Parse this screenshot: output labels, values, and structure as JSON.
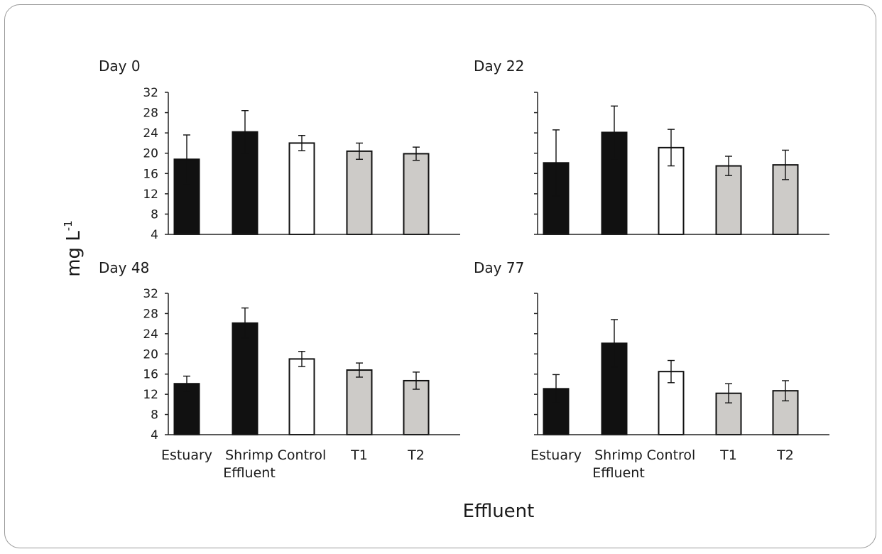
{
  "figure": {
    "ylabel": "mg L",
    "ylabel_superscript": "-1",
    "xlabel": "Effluent"
  },
  "chart_data": [
    {
      "type": "bar",
      "title": "Day 0",
      "categories": [
        "Estuary",
        "Shrimp Effluent",
        "Control",
        "T1",
        "T2"
      ],
      "values": [
        18.8,
        24.2,
        22.0,
        20.4,
        19.9
      ],
      "errors": [
        4.8,
        4.2,
        1.5,
        1.6,
        1.3
      ],
      "ylim": [
        4,
        32
      ],
      "yticks": [
        4,
        8,
        12,
        16,
        20,
        24,
        28,
        32
      ],
      "show_tick_labels": true,
      "show_category_labels": false,
      "bar_colors": [
        "#111111",
        "#111111",
        "#ffffff",
        "#cdcbc8",
        "#cdcbc8"
      ],
      "grid": false
    },
    {
      "type": "bar",
      "title": "Day 22",
      "categories": [
        "Estuary",
        "Shrimp Effluent",
        "Control",
        "T1",
        "T2"
      ],
      "values": [
        18.1,
        24.1,
        21.1,
        17.5,
        17.7
      ],
      "errors": [
        6.5,
        5.2,
        3.6,
        1.9,
        2.9
      ],
      "ylim": [
        4,
        32
      ],
      "yticks": [
        4,
        8,
        12,
        16,
        20,
        24,
        28,
        32
      ],
      "show_tick_labels": false,
      "show_category_labels": false,
      "bar_colors": [
        "#111111",
        "#111111",
        "#ffffff",
        "#cdcbc8",
        "#cdcbc8"
      ],
      "grid": false
    },
    {
      "type": "bar",
      "title": "Day 48",
      "categories": [
        "Estuary",
        "Shrimp Effluent",
        "Control",
        "T1",
        "T2"
      ],
      "values": [
        14.1,
        26.1,
        19.0,
        16.8,
        14.7
      ],
      "errors": [
        1.5,
        3.0,
        1.5,
        1.4,
        1.7
      ],
      "ylim": [
        4,
        32
      ],
      "yticks": [
        4,
        8,
        12,
        16,
        20,
        24,
        28,
        32
      ],
      "show_tick_labels": true,
      "show_category_labels": true,
      "bar_colors": [
        "#111111",
        "#111111",
        "#ffffff",
        "#cdcbc8",
        "#cdcbc8"
      ],
      "grid": false
    },
    {
      "type": "bar",
      "title": "Day 77",
      "categories": [
        "Estuary",
        "Shrimp Effluent",
        "Control",
        "T1",
        "T2"
      ],
      "values": [
        13.1,
        22.1,
        16.5,
        12.2,
        12.7
      ],
      "errors": [
        2.8,
        4.7,
        2.2,
        1.9,
        2.0
      ],
      "ylim": [
        4,
        32
      ],
      "yticks": [
        4,
        8,
        12,
        16,
        20,
        24,
        28,
        32
      ],
      "show_tick_labels": false,
      "show_category_labels": true,
      "bar_colors": [
        "#111111",
        "#111111",
        "#ffffff",
        "#cdcbc8",
        "#cdcbc8"
      ],
      "grid": false
    }
  ]
}
